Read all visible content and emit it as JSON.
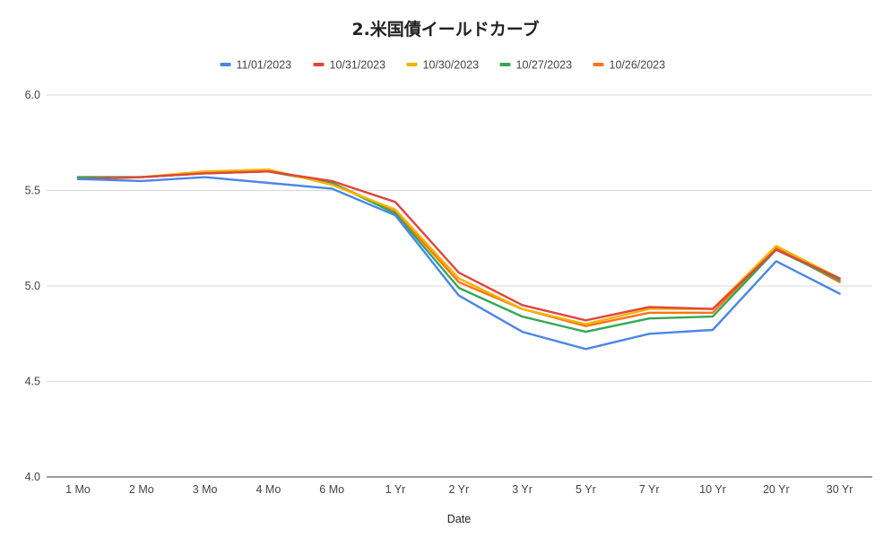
{
  "chart_data": {
    "type": "line",
    "title": "2.米国債イールドカーブ",
    "xlabel": "Date",
    "ylabel": "",
    "ylim": [
      4.0,
      6.0
    ],
    "yticks": [
      "4.0",
      "4.5",
      "5.0",
      "5.5",
      "6.0"
    ],
    "grid": true,
    "legend_position": "top",
    "categories": [
      "1 Mo",
      "2 Mo",
      "3 Mo",
      "4 Mo",
      "6 Mo",
      "1 Yr",
      "2 Yr",
      "3 Yr",
      "5 Yr",
      "7 Yr",
      "10 Yr",
      "20 Yr",
      "30 Yr"
    ],
    "series": [
      {
        "name": "11/01/2023",
        "color": "#4a86e8",
        "values": [
          5.56,
          5.55,
          5.57,
          5.54,
          5.51,
          5.37,
          4.95,
          4.76,
          4.67,
          4.75,
          4.77,
          5.13,
          4.96
        ]
      },
      {
        "name": "10/31/2023",
        "color": "#e0453e",
        "values": [
          5.56,
          5.57,
          5.59,
          5.6,
          5.55,
          5.44,
          5.07,
          4.9,
          4.82,
          4.89,
          4.88,
          5.19,
          5.04
        ]
      },
      {
        "name": "10/30/2023",
        "color": "#f6b400",
        "values": [
          5.56,
          5.57,
          5.6,
          5.61,
          5.53,
          5.4,
          5.04,
          4.88,
          4.8,
          4.88,
          4.88,
          5.21,
          5.04
        ]
      },
      {
        "name": "10/27/2023",
        "color": "#34a853",
        "values": [
          5.57,
          5.57,
          5.59,
          5.6,
          5.54,
          5.38,
          4.99,
          4.84,
          4.76,
          4.83,
          4.84,
          5.19,
          5.03
        ]
      },
      {
        "name": "10/26/2023",
        "color": "#fa7315",
        "values": [
          5.57,
          5.57,
          5.59,
          5.6,
          5.54,
          5.39,
          5.02,
          4.88,
          4.79,
          4.86,
          4.86,
          5.2,
          5.02
        ]
      }
    ]
  }
}
